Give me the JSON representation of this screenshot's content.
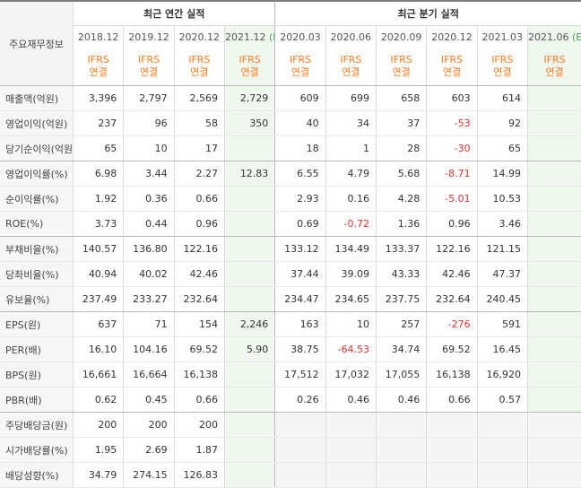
{
  "header": {
    "row_label": "주요재무정보",
    "annual_title": "최근 연간 실적",
    "quarter_title": "최근 분기 실적",
    "ifrs_top": "IFRS",
    "ifrs_bottom": "연결",
    "annual_periods": [
      {
        "date": "2018.12",
        "tag": ""
      },
      {
        "date": "2019.12",
        "tag": ""
      },
      {
        "date": "2020.12",
        "tag": ""
      },
      {
        "date": "2021.12",
        "tag": "(E)"
      }
    ],
    "quarter_periods": [
      {
        "date": "2020.03",
        "tag": ""
      },
      {
        "date": "2020.06",
        "tag": ""
      },
      {
        "date": "2020.09",
        "tag": ""
      },
      {
        "date": "2020.12",
        "tag": ""
      },
      {
        "date": "2021.03",
        "tag": ""
      },
      {
        "date": "2021.06",
        "tag": "(E)"
      }
    ]
  },
  "rows": [
    {
      "label": "매출액(억원)",
      "annual": [
        "3,396",
        "2,797",
        "2,569",
        "2,729"
      ],
      "quarter": [
        "609",
        "699",
        "658",
        "603",
        "614",
        ""
      ]
    },
    {
      "label": "영업이익(억원)",
      "annual": [
        "237",
        "96",
        "58",
        "350"
      ],
      "quarter": [
        "40",
        "34",
        "37",
        "-53",
        "92",
        ""
      ]
    },
    {
      "label": "당기순이익(억원)",
      "annual": [
        "65",
        "10",
        "17",
        ""
      ],
      "quarter": [
        "18",
        "1",
        "28",
        "-30",
        "65",
        ""
      ]
    },
    {
      "label": "영업이익률(%)",
      "annual": [
        "6.98",
        "3.44",
        "2.27",
        "12.83"
      ],
      "quarter": [
        "6.55",
        "4.79",
        "5.68",
        "-8.71",
        "14.99",
        ""
      ]
    },
    {
      "label": "순이익률(%)",
      "annual": [
        "1.92",
        "0.36",
        "0.66",
        ""
      ],
      "quarter": [
        "2.93",
        "0.16",
        "4.28",
        "-5.01",
        "10.53",
        ""
      ]
    },
    {
      "label": "ROE(%)",
      "annual": [
        "3.73",
        "0.44",
        "0.96",
        ""
      ],
      "quarter": [
        "0.69",
        "-0.72",
        "1.36",
        "0.96",
        "3.46",
        ""
      ]
    },
    {
      "label": "부채비율(%)",
      "annual": [
        "140.57",
        "136.80",
        "122.16",
        ""
      ],
      "quarter": [
        "133.12",
        "134.49",
        "133.37",
        "122.16",
        "121.15",
        ""
      ]
    },
    {
      "label": "당좌비율(%)",
      "annual": [
        "40.94",
        "40.02",
        "42.46",
        ""
      ],
      "quarter": [
        "37.44",
        "39.09",
        "43.33",
        "42.46",
        "47.37",
        ""
      ]
    },
    {
      "label": "유보율(%)",
      "annual": [
        "237.49",
        "233.27",
        "232.64",
        ""
      ],
      "quarter": [
        "234.47",
        "234.65",
        "237.75",
        "232.64",
        "240.45",
        ""
      ]
    },
    {
      "label": "EPS(원)",
      "annual": [
        "637",
        "71",
        "154",
        "2,246"
      ],
      "quarter": [
        "163",
        "10",
        "257",
        "-276",
        "591",
        ""
      ]
    },
    {
      "label": "PER(배)",
      "annual": [
        "16.10",
        "104.16",
        "69.52",
        "5.90"
      ],
      "quarter": [
        "38.75",
        "-64.53",
        "34.74",
        "69.52",
        "16.45",
        ""
      ]
    },
    {
      "label": "BPS(원)",
      "annual": [
        "16,661",
        "16,664",
        "16,138",
        ""
      ],
      "quarter": [
        "17,512",
        "17,032",
        "17,055",
        "16,138",
        "16,920",
        ""
      ]
    },
    {
      "label": "PBR(배)",
      "annual": [
        "0.62",
        "0.45",
        "0.66",
        ""
      ],
      "quarter": [
        "0.26",
        "0.46",
        "0.46",
        "0.66",
        "0.57",
        ""
      ]
    },
    {
      "label": "주당배당금(원)",
      "annual": [
        "200",
        "200",
        "200",
        ""
      ],
      "quarter": [
        "",
        "",
        "",
        "",
        "",
        ""
      ]
    },
    {
      "label": "시가배당률(%)",
      "annual": [
        "1.95",
        "2.69",
        "1.87",
        ""
      ],
      "quarter": [
        "",
        "",
        "",
        "",
        "",
        ""
      ]
    },
    {
      "label": "배당성향(%)",
      "annual": [
        "34.79",
        "274.15",
        "126.83",
        ""
      ],
      "quarter": [
        "",
        "",
        "",
        "",
        "",
        ""
      ]
    }
  ],
  "colors": {
    "negative": "#e23131",
    "ifrs": "#ff7a1a",
    "estimate_bg": "#f0f7ef",
    "estimate_tag": "#4aa55a"
  }
}
